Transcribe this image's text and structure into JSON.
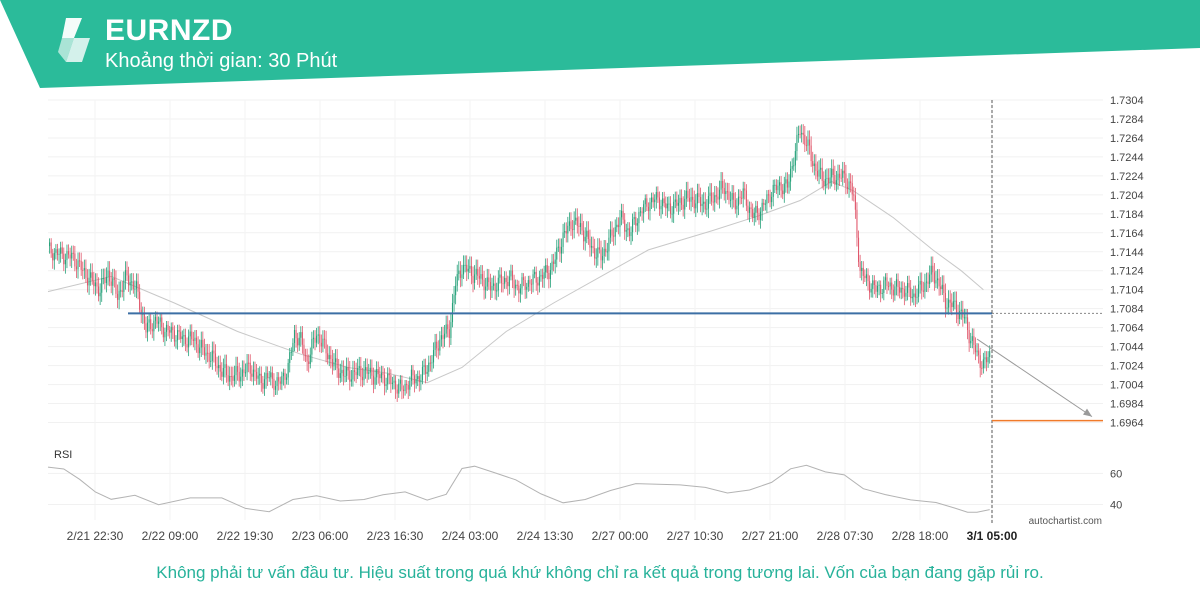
{
  "header": {
    "symbol": "EURNZD",
    "timeframe": "Khoảng thời gian: 30 Phút",
    "brand_color": "#2bbb9a",
    "logo_icon": "autochartist-logo-icon"
  },
  "footer": {
    "disclaimer": "Không phải tư vấn đầu tư. Hiệu suất trong quá khứ không chỉ ra kết quả trong tương lai. Vốn của bạn đang gặp rủi ro."
  },
  "chart_data": {
    "type": "candlestick",
    "symbol": "EURNZD",
    "ylim": [
      1.6954,
      1.7304
    ],
    "y_ticks": [
      "1.7304",
      "1.7284",
      "1.7264",
      "1.7244",
      "1.7224",
      "1.7204",
      "1.7184",
      "1.7164",
      "1.7144",
      "1.7124",
      "1.7104",
      "1.7084",
      "1.7064",
      "1.7044",
      "1.7024",
      "1.7004",
      "1.6984",
      "1.6964"
    ],
    "x_ticks": [
      "2/21 22:30",
      "2/22 09:00",
      "2/22 19:30",
      "2/23 06:00",
      "2/23 16:30",
      "2/24 03:00",
      "2/24 13:30",
      "2/27 00:00",
      "2/27 10:30",
      "2/27 21:00",
      "2/28 07:30",
      "2/28 18:00",
      "3/1 05:00"
    ],
    "x_tick_highlight": "3/1 05:00",
    "price_path": [
      [
        0,
        1.7146
      ],
      [
        8,
        1.7141
      ],
      [
        16,
        1.7138
      ],
      [
        22,
        1.7124
      ],
      [
        28,
        1.7112
      ],
      [
        33,
        1.7104
      ],
      [
        38,
        1.7122
      ],
      [
        44,
        1.7098
      ],
      [
        50,
        1.7118
      ],
      [
        56,
        1.7104
      ],
      [
        62,
        1.7062
      ],
      [
        68,
        1.7072
      ],
      [
        74,
        1.7062
      ],
      [
        80,
        1.7058
      ],
      [
        86,
        1.7052
      ],
      [
        92,
        1.7052
      ],
      [
        98,
        1.704
      ],
      [
        104,
        1.7032
      ],
      [
        110,
        1.7018
      ],
      [
        116,
        1.7012
      ],
      [
        122,
        1.7016
      ],
      [
        128,
        1.7022
      ],
      [
        134,
        1.7008
      ],
      [
        140,
        1.7012
      ],
      [
        146,
        1.7004
      ],
      [
        152,
        1.7022
      ],
      [
        156,
        1.7058
      ],
      [
        160,
        1.705
      ],
      [
        164,
        1.7028
      ],
      [
        170,
        1.7058
      ],
      [
        176,
        1.704
      ],
      [
        182,
        1.7022
      ],
      [
        188,
        1.7014
      ],
      [
        194,
        1.7016
      ],
      [
        200,
        1.7018
      ],
      [
        206,
        1.7014
      ],
      [
        212,
        1.7012
      ],
      [
        218,
        1.7006
      ],
      [
        224,
        1.6999
      ],
      [
        230,
        1.701
      ],
      [
        236,
        1.7012
      ],
      [
        242,
        1.7028
      ],
      [
        248,
        1.7052
      ],
      [
        254,
        1.7062
      ],
      [
        258,
        1.711
      ],
      [
        262,
        1.7128
      ],
      [
        268,
        1.7122
      ],
      [
        274,
        1.7116
      ],
      [
        280,
        1.7106
      ],
      [
        286,
        1.7112
      ],
      [
        292,
        1.7116
      ],
      [
        298,
        1.7106
      ],
      [
        304,
        1.7112
      ],
      [
        310,
        1.7116
      ],
      [
        316,
        1.7122
      ],
      [
        320,
        1.7132
      ],
      [
        326,
        1.716
      ],
      [
        332,
        1.7176
      ],
      [
        338,
        1.7168
      ],
      [
        344,
        1.7148
      ],
      [
        350,
        1.7138
      ],
      [
        356,
        1.7158
      ],
      [
        362,
        1.718
      ],
      [
        368,
        1.7164
      ],
      [
        374,
        1.7184
      ],
      [
        380,
        1.7196
      ],
      [
        386,
        1.72
      ],
      [
        392,
        1.719
      ],
      [
        398,
        1.7194
      ],
      [
        404,
        1.72
      ],
      [
        410,
        1.7198
      ],
      [
        416,
        1.7194
      ],
      [
        422,
        1.7202
      ],
      [
        428,
        1.7212
      ],
      [
        434,
        1.7194
      ],
      [
        440,
        1.7205
      ],
      [
        446,
        1.7182
      ],
      [
        452,
        1.719
      ],
      [
        458,
        1.7208
      ],
      [
        464,
        1.7214
      ],
      [
        468,
        1.7212
      ],
      [
        472,
        1.7244
      ],
      [
        476,
        1.7272
      ],
      [
        480,
        1.726
      ],
      [
        484,
        1.7238
      ],
      [
        490,
        1.722
      ],
      [
        496,
        1.7222
      ],
      [
        502,
        1.7224
      ],
      [
        508,
        1.7214
      ],
      [
        510,
        1.72
      ],
      [
        514,
        1.7124
      ],
      [
        518,
        1.7114
      ],
      [
        524,
        1.7104
      ],
      [
        530,
        1.711
      ],
      [
        536,
        1.7106
      ],
      [
        542,
        1.7104
      ],
      [
        548,
        1.7098
      ],
      [
        554,
        1.7108
      ],
      [
        560,
        1.7122
      ],
      [
        564,
        1.711
      ],
      [
        568,
        1.7092
      ],
      [
        574,
        1.7086
      ],
      [
        580,
        1.7074
      ],
      [
        584,
        1.7052
      ],
      [
        588,
        1.7036
      ],
      [
        592,
        1.7024
      ],
      [
        596,
        1.7036
      ]
    ],
    "moving_average_path": [
      [
        0,
        1.7102
      ],
      [
        40,
        1.7118
      ],
      [
        80,
        1.709
      ],
      [
        120,
        1.706
      ],
      [
        160,
        1.7036
      ],
      [
        190,
        1.7022
      ],
      [
        215,
        1.7016
      ],
      [
        240,
        1.7006
      ],
      [
        262,
        1.7022
      ],
      [
        290,
        1.706
      ],
      [
        320,
        1.709
      ],
      [
        350,
        1.7118
      ],
      [
        380,
        1.7146
      ],
      [
        420,
        1.7166
      ],
      [
        450,
        1.7182
      ],
      [
        476,
        1.7198
      ],
      [
        496,
        1.7218
      ],
      [
        510,
        1.7208
      ],
      [
        535,
        1.718
      ],
      [
        560,
        1.7146
      ],
      [
        578,
        1.7124
      ],
      [
        592,
        1.7104
      ]
    ],
    "support_level": 1.7079,
    "target_level": 1.6966,
    "forecast_path": [
      [
        588,
        1.7052
      ],
      [
        618,
        1.697
      ]
    ],
    "indicator": {
      "name": "RSI",
      "y_ticks": [
        "60",
        "40"
      ],
      "ylim": [
        30,
        75
      ],
      "values": [
        [
          0,
          64
        ],
        [
          10,
          62
        ],
        [
          20,
          55
        ],
        [
          30,
          47
        ],
        [
          40,
          43
        ],
        [
          55,
          45
        ],
        [
          70,
          41
        ],
        [
          90,
          44
        ],
        [
          110,
          43
        ],
        [
          125,
          38
        ],
        [
          140,
          36
        ],
        [
          155,
          42
        ],
        [
          170,
          46
        ],
        [
          185,
          43
        ],
        [
          200,
          42
        ],
        [
          212,
          47
        ],
        [
          226,
          47
        ],
        [
          240,
          44
        ],
        [
          252,
          46
        ],
        [
          262,
          62
        ],
        [
          270,
          64
        ],
        [
          282,
          60
        ],
        [
          296,
          56
        ],
        [
          312,
          48
        ],
        [
          326,
          40
        ],
        [
          340,
          44
        ],
        [
          356,
          50
        ],
        [
          372,
          53
        ],
        [
          386,
          53
        ],
        [
          400,
          53
        ],
        [
          416,
          50
        ],
        [
          430,
          48
        ],
        [
          444,
          49
        ],
        [
          458,
          54
        ],
        [
          470,
          62
        ],
        [
          480,
          65
        ],
        [
          492,
          62
        ],
        [
          504,
          58
        ],
        [
          516,
          50
        ],
        [
          530,
          46
        ],
        [
          546,
          44
        ],
        [
          562,
          42
        ],
        [
          574,
          38
        ],
        [
          582,
          36
        ],
        [
          588,
          35
        ],
        [
          596,
          36
        ]
      ]
    },
    "watermark": "autochartist.com"
  }
}
